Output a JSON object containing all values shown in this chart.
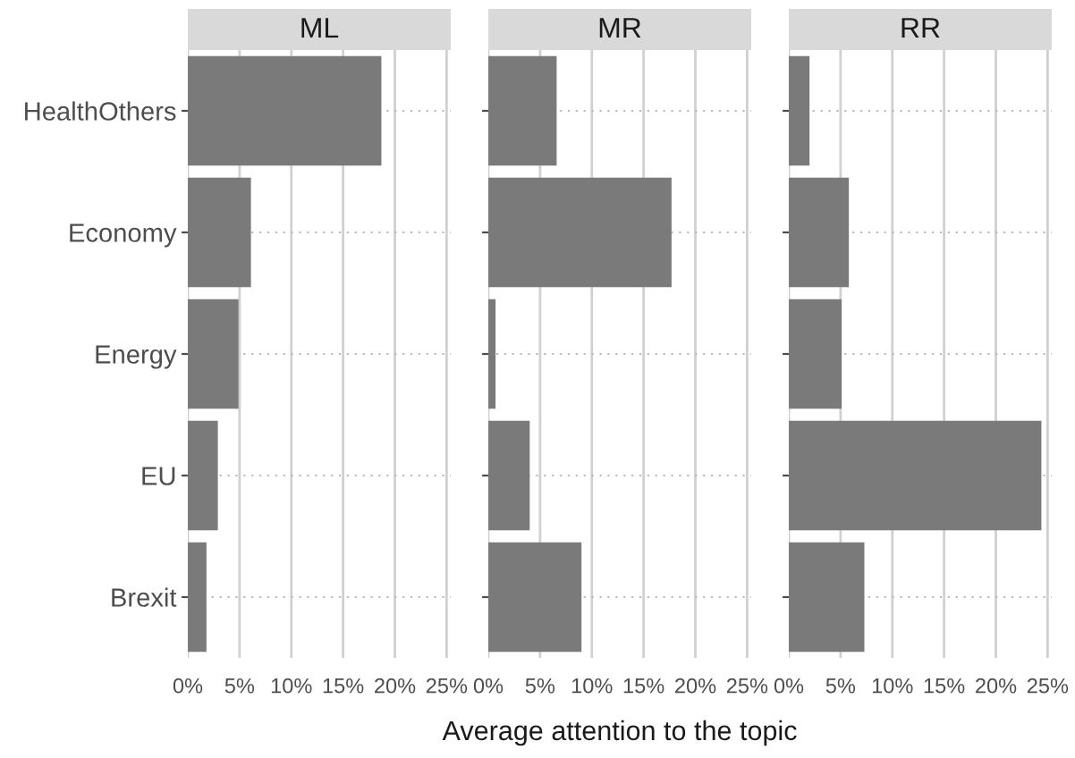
{
  "chart_data": [
    {
      "type": "bar",
      "orientation": "horizontal",
      "title": "ML",
      "categories": [
        "HealthOthers",
        "Economy",
        "Energy",
        "EU",
        "Brexit"
      ],
      "values": [
        18.7,
        6.1,
        4.9,
        2.9,
        1.8
      ],
      "color": "#7a7a7a",
      "xlim": [
        0,
        25.4
      ],
      "xticks": [
        {
          "value": 0,
          "label": "0%"
        },
        {
          "value": 5,
          "label": "5%"
        },
        {
          "value": 10,
          "label": "10%"
        },
        {
          "value": 15,
          "label": "15%"
        },
        {
          "value": 20,
          "label": "20%"
        },
        {
          "value": 25,
          "label": "25%"
        }
      ],
      "grid": true
    },
    {
      "type": "bar",
      "orientation": "horizontal",
      "title": "MR",
      "xlabel": "Average attention to the topic",
      "categories": [
        null,
        null,
        null,
        null,
        null
      ],
      "values": [
        6.6,
        17.7,
        0.7,
        4.0,
        9.0
      ],
      "color": "#7a7a7a",
      "xlim": [
        0,
        25.4
      ],
      "xticks": [
        {
          "value": 0,
          "label": "0%"
        },
        {
          "value": 5,
          "label": "5%"
        },
        {
          "value": 10,
          "label": "10%"
        },
        {
          "value": 15,
          "label": "15%"
        },
        {
          "value": 20,
          "label": "20%"
        },
        {
          "value": 25,
          "label": "25%"
        }
      ],
      "grid": true,
      "tick_labels": "x"
    },
    {
      "type": "bar",
      "orientation": "horizontal",
      "title": "RR",
      "categories": [
        null,
        null,
        null,
        null,
        null
      ],
      "values": [
        2.0,
        5.8,
        5.1,
        24.4,
        7.3
      ],
      "color": "#7a7a7a",
      "xlim": [
        0,
        25.4
      ],
      "xticks": [
        {
          "value": 0,
          "label": "0%"
        },
        {
          "value": 5,
          "label": "5%"
        },
        {
          "value": 10,
          "label": "10%"
        },
        {
          "value": 15,
          "label": "15%"
        },
        {
          "value": 20,
          "label": "20%"
        },
        {
          "value": 25,
          "label": "25%"
        }
      ],
      "grid": true,
      "tick_labels": "x"
    }
  ]
}
